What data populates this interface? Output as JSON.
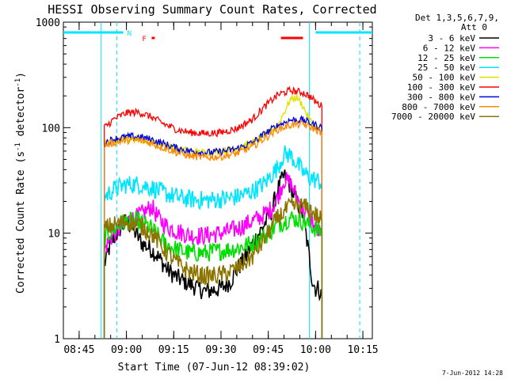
{
  "chart_data": {
    "type": "line",
    "title": "HESSI Observing Summary Count Rates, Corrected",
    "xlabel": "Start Time (07-Jun-12 08:39:02)",
    "ylabel_parts": [
      "Corrected Count Rate (s",
      "-1",
      " detector",
      "-1",
      ")"
    ],
    "yscale": "log",
    "ylim": [
      1,
      1000
    ],
    "xlim": [
      "08:40",
      "10:18"
    ],
    "ytick_labels": [
      {
        "value": 1,
        "label": "1"
      },
      {
        "value": 10,
        "label": "10"
      },
      {
        "value": 100,
        "label": "100"
      },
      {
        "value": 1000,
        "label": "1000"
      }
    ],
    "xtick_labels": [
      {
        "time": "08:45",
        "label": "08:45"
      },
      {
        "time": "09:00",
        "label": "09:00"
      },
      {
        "time": "09:15",
        "label": "09:15"
      },
      {
        "time": "09:30",
        "label": "09:30"
      },
      {
        "time": "09:45",
        "label": "09:45"
      },
      {
        "time": "10:00",
        "label": "10:00"
      },
      {
        "time": "10:15",
        "label": "10:15"
      }
    ],
    "legend_header": [
      "Det 1,3,5,6,7,9,",
      "Att 0"
    ],
    "legend_position": "right",
    "timestamp": "7-Jun-2012 14:28",
    "flags": [
      {
        "label": "N",
        "color": "#00e5ff",
        "segments": [
          [
            "08:40",
            "08:59"
          ],
          [
            "10:00",
            "10:18"
          ]
        ]
      },
      {
        "label": "F",
        "color": "#ff0000",
        "segments": [
          [
            "09:08",
            "09:09"
          ],
          [
            "09:49",
            "09:56"
          ]
        ]
      }
    ],
    "markers": [
      {
        "time": "08:52",
        "color": "#00e5ff",
        "style": "solid"
      },
      {
        "time": "08:57",
        "color": "#00e5ff",
        "style": "dashed"
      },
      {
        "time": "09:58",
        "color": "#00e5ff",
        "style": "solid"
      },
      {
        "time": "10:14",
        "color": "#00e5ff",
        "style": "dashed"
      }
    ],
    "series": [
      {
        "name": "3 - 6 keV",
        "color": "#000000",
        "x": [
          "08:53",
          "08:55",
          "08:58",
          "09:00",
          "09:02",
          "09:05",
          "09:08",
          "09:10",
          "09:13",
          "09:16",
          "09:20",
          "09:25",
          "09:30",
          "09:33",
          "09:35",
          "09:38",
          "09:40",
          "09:43",
          "09:46",
          "09:48",
          "09:50",
          "09:52",
          "09:54",
          "09:56",
          "09:58",
          "09:59",
          "10:00",
          "10:01",
          "10:02"
        ],
        "y": [
          5,
          8,
          11,
          13,
          11,
          8,
          7,
          6,
          4.5,
          3.8,
          3.3,
          2.8,
          3,
          3.5,
          4.5,
          6,
          8,
          11,
          16,
          26,
          35,
          28,
          20,
          15,
          6,
          3.5,
          3,
          3,
          2.5
        ]
      },
      {
        "name": "6 - 12 keV",
        "color": "#ff00ff",
        "x": [
          "08:53",
          "08:55",
          "08:58",
          "09:00",
          "09:03",
          "09:06",
          "09:08",
          "09:10",
          "09:13",
          "09:16",
          "09:20",
          "09:25",
          "09:30",
          "09:35",
          "09:40",
          "09:43",
          "09:46",
          "09:48",
          "09:50",
          "09:52",
          "09:54",
          "09:56",
          "09:58",
          "10:00",
          "10:02"
        ],
        "y": [
          7,
          9,
          11,
          13,
          14,
          16,
          18,
          14,
          11.5,
          10.5,
          9.5,
          9.5,
          10,
          11,
          13,
          14.5,
          17,
          22,
          32,
          30,
          22,
          17,
          14,
          11,
          9.5
        ]
      },
      {
        "name": "12 - 25 keV",
        "color": "#00e000",
        "x": [
          "08:53",
          "08:56",
          "09:00",
          "09:04",
          "09:08",
          "09:12",
          "09:16",
          "09:20",
          "09:25",
          "09:30",
          "09:35",
          "09:40",
          "09:44",
          "09:48",
          "09:52",
          "09:56",
          "09:58",
          "10:00",
          "10:02"
        ],
        "y": [
          9,
          11,
          13,
          13,
          11,
          8,
          7,
          6.5,
          6.5,
          6.8,
          7.2,
          8,
          9.5,
          12,
          14,
          13,
          12,
          11,
          10
        ]
      },
      {
        "name": "25 - 50 keV",
        "color": "#00e5ff",
        "x": [
          "08:53",
          "08:56",
          "09:00",
          "09:04",
          "09:08",
          "09:12",
          "09:16",
          "09:20",
          "09:25",
          "09:30",
          "09:35",
          "09:40",
          "09:44",
          "09:48",
          "09:50",
          "09:52",
          "09:54",
          "09:56",
          "09:58",
          "10:00",
          "10:02"
        ],
        "y": [
          22,
          26,
          29,
          29,
          27,
          24,
          22,
          21,
          20.5,
          21,
          22,
          25,
          30,
          42,
          56,
          55,
          46,
          38,
          34,
          32,
          30
        ]
      },
      {
        "name": "50 - 100 keV",
        "color": "#e0e000",
        "x": [
          "08:53",
          "08:56",
          "09:00",
          "09:04",
          "09:08",
          "09:12",
          "09:16",
          "09:20",
          "09:25",
          "09:30",
          "09:35",
          "09:40",
          "09:44",
          "09:48",
          "09:50",
          "09:52",
          "09:54",
          "09:56",
          "09:58",
          "10:00",
          "10:02"
        ],
        "y": [
          70,
          74,
          78,
          78,
          74,
          68,
          63,
          60,
          58,
          60,
          64,
          72,
          85,
          105,
          140,
          185,
          195,
          160,
          120,
          100,
          92
        ]
      },
      {
        "name": "100 - 300 keV",
        "color": "#ff0000",
        "x": [
          "08:53",
          "08:56",
          "09:00",
          "09:04",
          "09:08",
          "09:12",
          "09:16",
          "09:20",
          "09:25",
          "09:30",
          "09:35",
          "09:40",
          "09:44",
          "09:48",
          "09:52",
          "09:56",
          "09:58",
          "10:00",
          "10:02"
        ],
        "y": [
          100,
          120,
          138,
          140,
          126,
          108,
          96,
          90,
          88,
          90,
          98,
          120,
          160,
          205,
          225,
          215,
          200,
          175,
          160
        ]
      },
      {
        "name": "300 - 800 keV",
        "color": "#0000e0",
        "x": [
          "08:53",
          "08:56",
          "09:00",
          "09:04",
          "09:08",
          "09:12",
          "09:16",
          "09:20",
          "09:25",
          "09:30",
          "09:35",
          "09:40",
          "09:44",
          "09:48",
          "09:52",
          "09:56",
          "09:58",
          "10:00",
          "10:02"
        ],
        "y": [
          72,
          78,
          82,
          82,
          77,
          70,
          64,
          60,
          58,
          59,
          63,
          72,
          88,
          105,
          118,
          118,
          112,
          106,
          100
        ]
      },
      {
        "name": "800 - 7000 keV",
        "color": "#ff8800",
        "x": [
          "08:53",
          "08:56",
          "09:00",
          "09:04",
          "09:08",
          "09:12",
          "09:16",
          "09:20",
          "09:25",
          "09:30",
          "09:35",
          "09:40",
          "09:44",
          "09:48",
          "09:52",
          "09:56",
          "09:58",
          "10:00",
          "10:02"
        ],
        "y": [
          68,
          72,
          76,
          76,
          71,
          64,
          58,
          54,
          52,
          53,
          57,
          66,
          80,
          96,
          106,
          108,
          102,
          96,
          90
        ]
      },
      {
        "name": "7000 - 20000 keV",
        "color": "#8b7500",
        "x": [
          "08:53",
          "08:56",
          "09:00",
          "09:04",
          "09:08",
          "09:12",
          "09:16",
          "09:20",
          "09:25",
          "09:30",
          "09:35",
          "09:40",
          "09:44",
          "09:48",
          "09:52",
          "09:56",
          "09:58",
          "10:00",
          "10:02"
        ],
        "y": [
          11,
          12,
          13,
          12,
          10,
          7,
          5.2,
          4.3,
          3.9,
          4,
          4.6,
          6,
          9,
          14,
          18,
          18,
          17,
          15,
          13
        ]
      }
    ]
  }
}
